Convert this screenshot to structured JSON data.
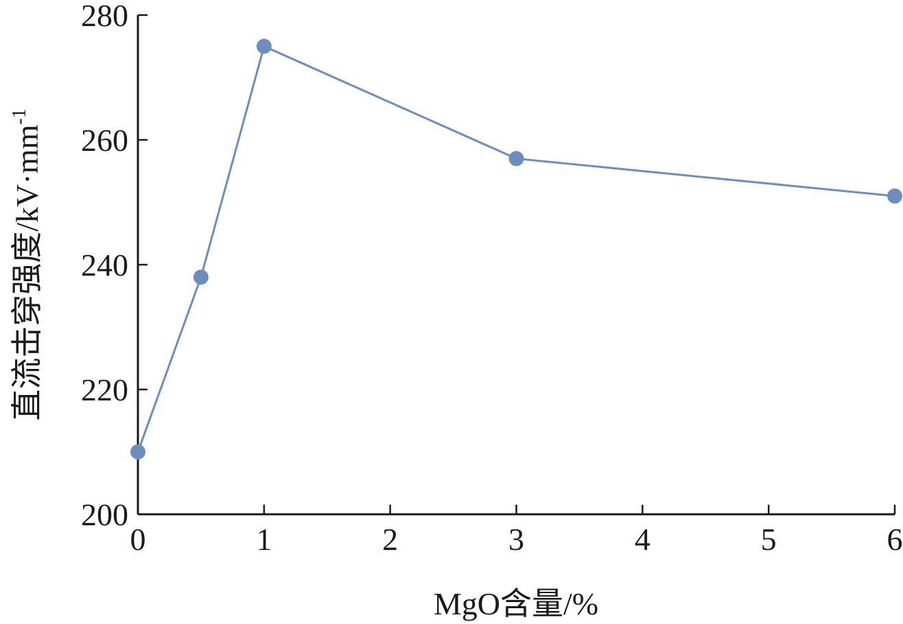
{
  "chart_data": {
    "type": "line",
    "xlabel": "MgO含量/%",
    "ylabel_main": "直流击穿强度/kV·mm",
    "ylabel_sup": "-1",
    "xlim": [
      0,
      6
    ],
    "ylim": [
      200,
      280
    ],
    "xticks": [
      "0",
      "1",
      "2",
      "3",
      "4",
      "5",
      "6"
    ],
    "yticks": [
      "200",
      "220",
      "240",
      "260",
      "280"
    ],
    "grid": false,
    "series": [
      {
        "color": "#6c8ebf",
        "x": [
          0,
          0.5,
          1,
          3,
          6
        ],
        "y": [
          210,
          238,
          275,
          257,
          251
        ]
      }
    ]
  }
}
